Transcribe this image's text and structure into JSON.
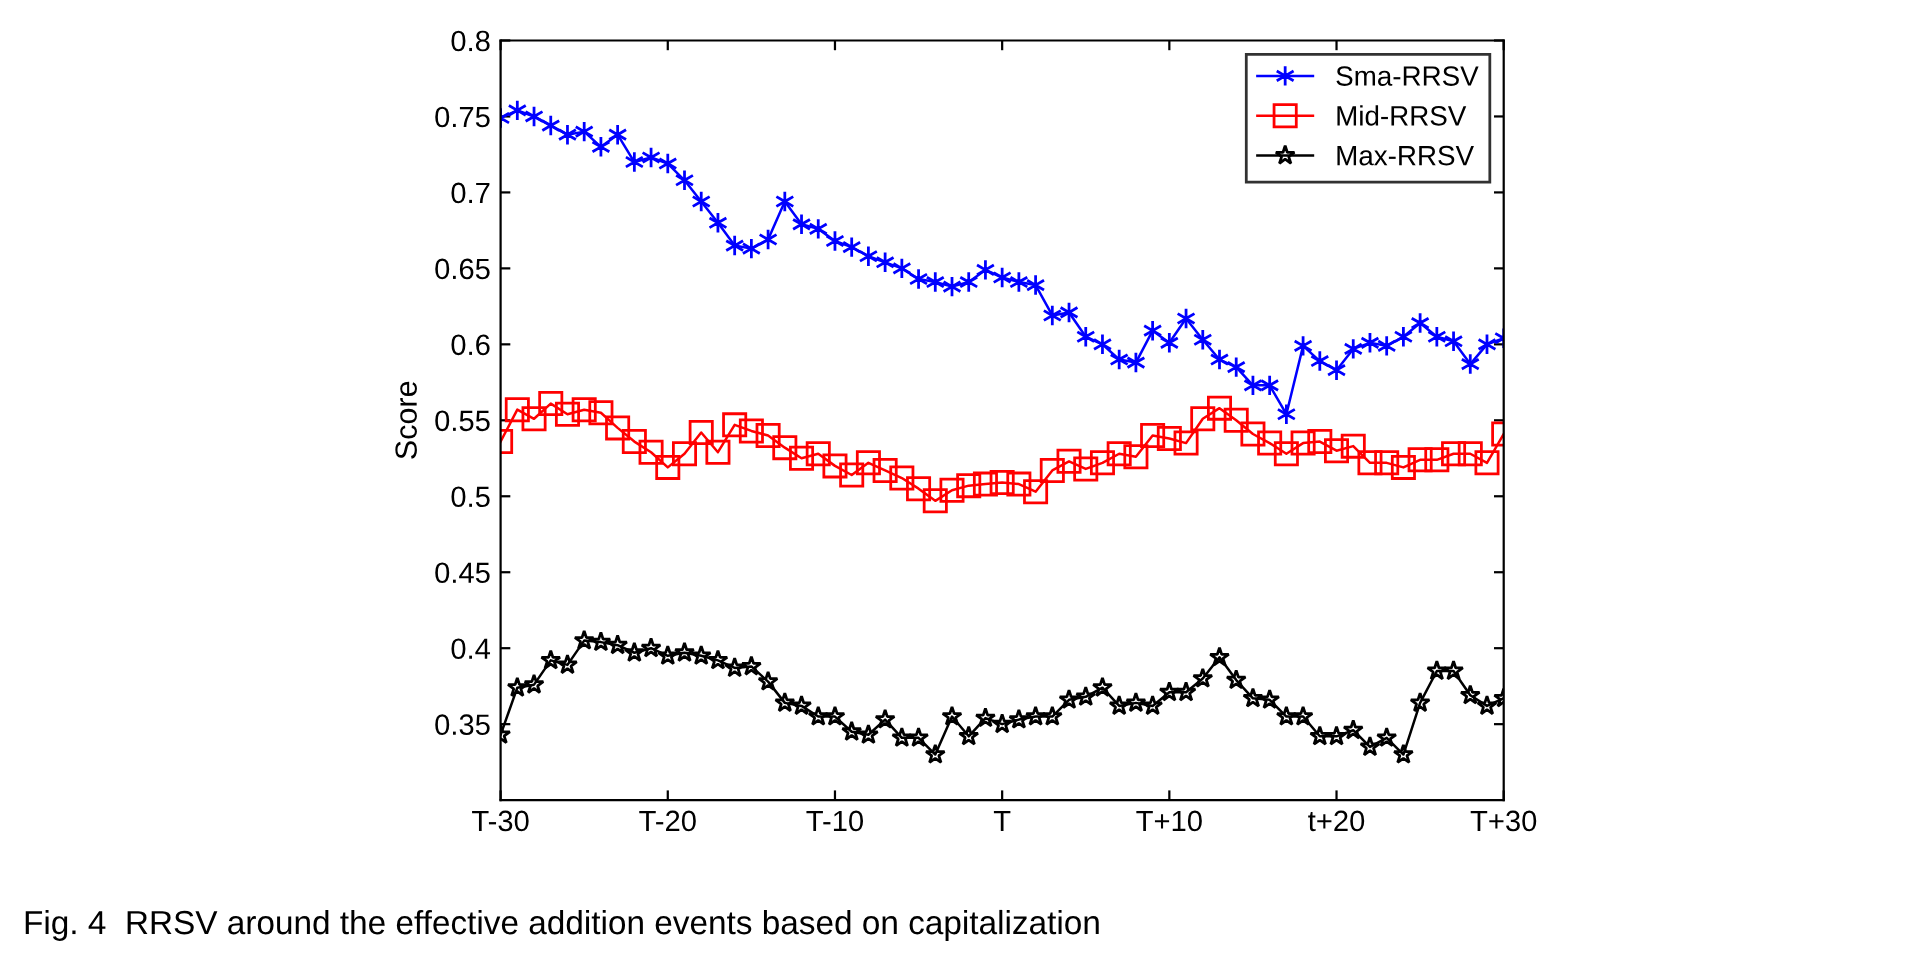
{
  "chart_data": {
    "type": "line",
    "ylabel": "Score",
    "categories": [
      "T-30",
      null,
      null,
      null,
      null,
      null,
      null,
      null,
      null,
      null,
      "T-20",
      null,
      null,
      null,
      null,
      null,
      null,
      null,
      null,
      null,
      "T-10",
      null,
      null,
      null,
      null,
      null,
      null,
      null,
      null,
      null,
      "T",
      null,
      null,
      null,
      null,
      null,
      null,
      null,
      null,
      null,
      "T+10",
      null,
      null,
      null,
      null,
      null,
      null,
      null,
      null,
      null,
      "t+20",
      null,
      null,
      null,
      null,
      null,
      null,
      null,
      null,
      null,
      "T+30"
    ],
    "series": [
      {
        "name": "Sma-RRSV",
        "color": "#0000ff",
        "marker": "cross",
        "values": [
          0.749,
          0.754,
          0.75,
          0.744,
          0.738,
          0.74,
          0.73,
          0.738,
          0.72,
          0.723,
          0.719,
          0.708,
          0.694,
          0.68,
          0.665,
          0.663,
          0.669,
          0.694,
          0.679,
          0.676,
          0.668,
          0.664,
          0.658,
          0.654,
          0.65,
          0.643,
          0.641,
          0.638,
          0.641,
          0.649,
          0.644,
          0.641,
          0.639,
          0.619,
          0.621,
          0.605,
          0.6,
          0.59,
          0.588,
          0.609,
          0.601,
          0.617,
          0.603,
          0.59,
          0.585,
          0.573,
          0.573,
          0.554,
          0.599,
          0.589,
          0.583,
          0.597,
          0.601,
          0.599,
          0.605,
          0.614,
          0.605,
          0.602,
          0.587,
          0.6,
          0.604
        ]
      },
      {
        "name": "Mid-RRSV",
        "color": "#ff0000",
        "marker": "square",
        "values": [
          0.536,
          0.557,
          0.551,
          0.561,
          0.554,
          0.557,
          0.555,
          0.545,
          0.536,
          0.529,
          0.519,
          0.528,
          0.542,
          0.529,
          0.547,
          0.543,
          0.54,
          0.532,
          0.525,
          0.528,
          0.52,
          0.514,
          0.522,
          0.517,
          0.512,
          0.505,
          0.497,
          0.504,
          0.507,
          0.508,
          0.509,
          0.508,
          0.503,
          0.517,
          0.523,
          0.518,
          0.522,
          0.528,
          0.526,
          0.54,
          0.538,
          0.535,
          0.551,
          0.558,
          0.55,
          0.541,
          0.535,
          0.528,
          0.535,
          0.536,
          0.53,
          0.533,
          0.522,
          0.522,
          0.519,
          0.524,
          0.524,
          0.528,
          0.528,
          0.522,
          0.541
        ]
      },
      {
        "name": "Max-RRSV",
        "color": "#000000",
        "marker": "star",
        "values": [
          0.343,
          0.374,
          0.376,
          0.392,
          0.389,
          0.405,
          0.404,
          0.402,
          0.397,
          0.4,
          0.395,
          0.397,
          0.395,
          0.392,
          0.387,
          0.388,
          0.378,
          0.364,
          0.362,
          0.355,
          0.355,
          0.345,
          0.343,
          0.353,
          0.341,
          0.341,
          0.33,
          0.355,
          0.342,
          0.354,
          0.35,
          0.353,
          0.355,
          0.355,
          0.366,
          0.368,
          0.374,
          0.362,
          0.364,
          0.362,
          0.371,
          0.371,
          0.38,
          0.394,
          0.379,
          0.367,
          0.366,
          0.355,
          0.355,
          0.342,
          0.342,
          0.346,
          0.335,
          0.341,
          0.33,
          0.364,
          0.385,
          0.385,
          0.369,
          0.362,
          0.367
        ]
      }
    ],
    "ylim": [
      0.3,
      0.8
    ],
    "yticks": [
      0.35,
      0.4,
      0.45,
      0.5,
      0.55,
      0.6,
      0.65,
      0.7,
      0.75,
      0.8
    ],
    "legend": "top right",
    "line_style": "solid",
    "annotations": [
      "Fig. 4  RRSV around the effective addition events based on capitalization"
    ]
  }
}
